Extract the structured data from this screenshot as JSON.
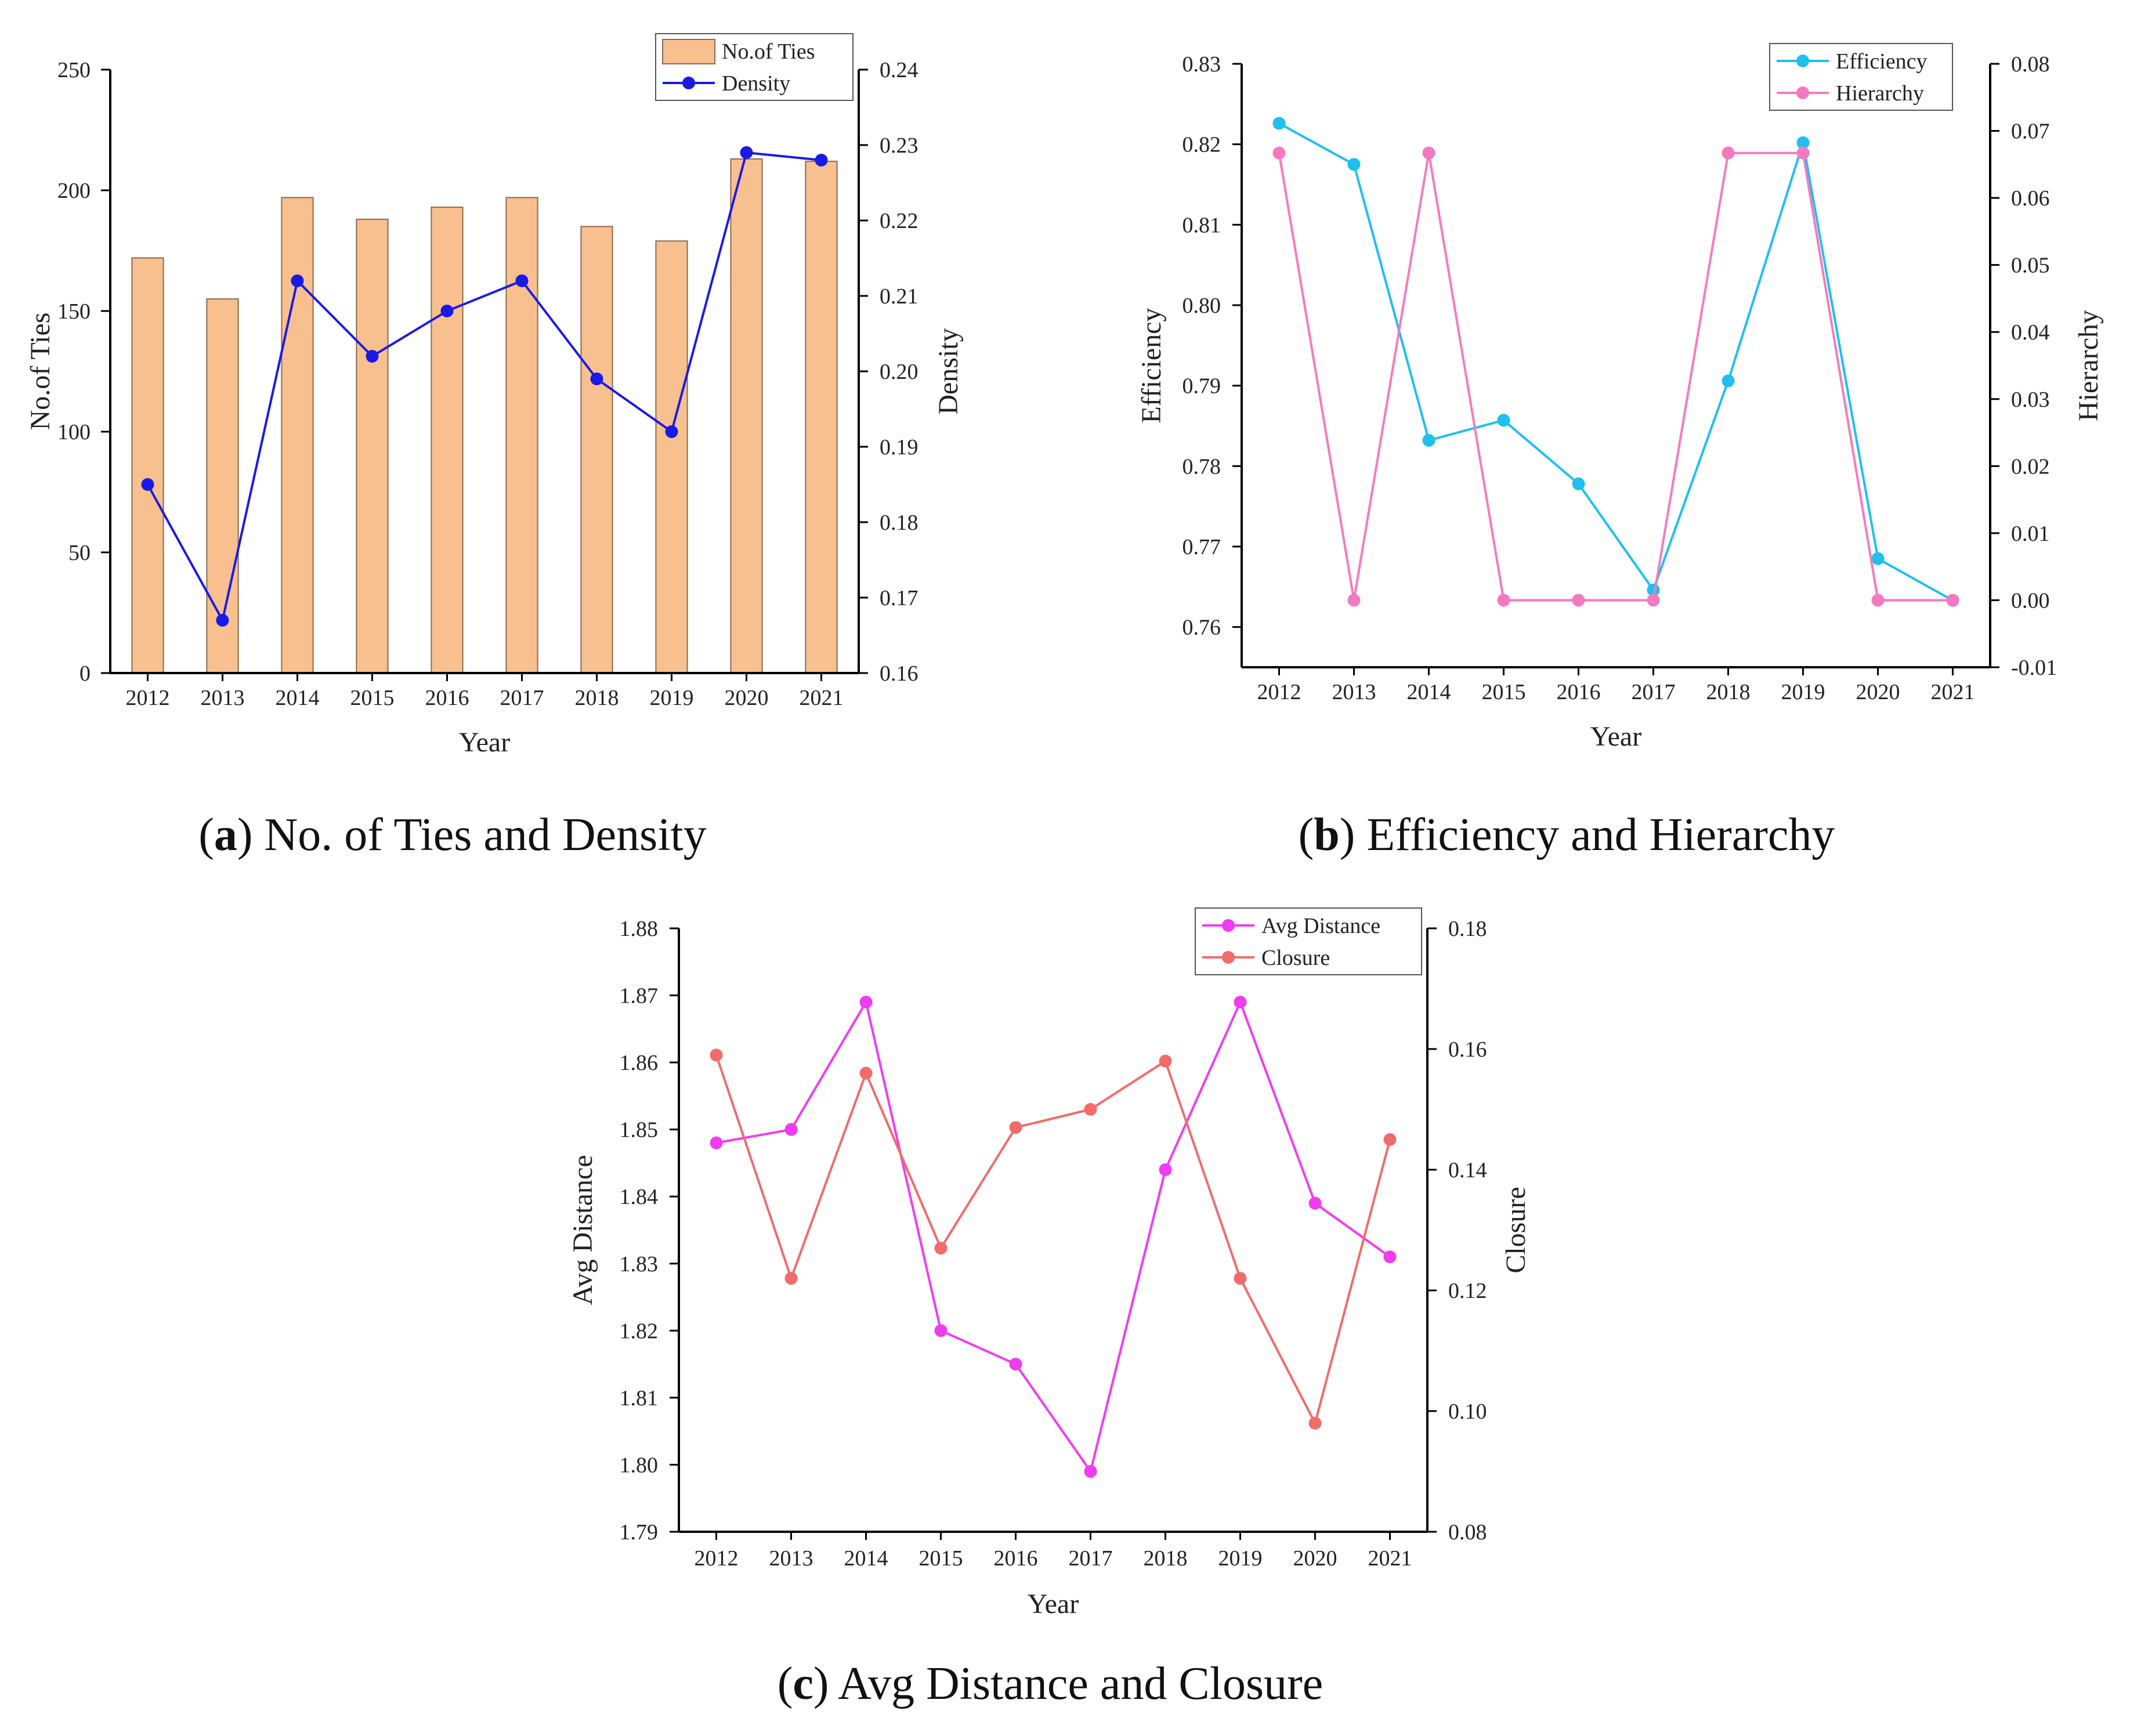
{
  "chart_data": [
    {
      "id": "a",
      "type": "bar+line",
      "caption_letter": "a",
      "caption_text": "No. of Ties and Density",
      "categories": [
        "2012",
        "2013",
        "2014",
        "2015",
        "2016",
        "2017",
        "2018",
        "2019",
        "2020",
        "2021"
      ],
      "xlabel": "Year",
      "left_axis": {
        "label": "No.of Ties",
        "min": 0,
        "max": 250,
        "ticks": [
          0,
          50,
          100,
          150,
          200,
          250
        ],
        "tick_labels": [
          "0",
          "50",
          "100",
          "150",
          "200",
          "250"
        ]
      },
      "right_axis": {
        "label": "Density",
        "min": 0.16,
        "max": 0.24,
        "ticks": [
          0.16,
          0.17,
          0.18,
          0.19,
          0.2,
          0.21,
          0.22,
          0.23,
          0.24
        ],
        "tick_labels": [
          "0.16",
          "0.17",
          "0.18",
          "0.19",
          "0.20",
          "0.21",
          "0.22",
          "0.23",
          "0.24"
        ]
      },
      "series": [
        {
          "name": "No.of Ties",
          "kind": "bar",
          "axis": "left",
          "color": "#f9c08f",
          "stroke": "#8a6a50",
          "values": [
            172,
            155,
            197,
            188,
            193,
            197,
            185,
            179,
            213,
            212
          ]
        },
        {
          "name": "Density",
          "kind": "line",
          "axis": "right",
          "color": "#1a1ae6",
          "values": [
            0.185,
            0.167,
            0.212,
            0.202,
            0.208,
            0.212,
            0.199,
            0.192,
            0.229,
            0.228
          ]
        }
      ],
      "legend_position": "top-right"
    },
    {
      "id": "b",
      "type": "line",
      "caption_letter": "b",
      "caption_text": "Efficiency and Hierarchy",
      "categories": [
        "2012",
        "2013",
        "2014",
        "2015",
        "2016",
        "2017",
        "2018",
        "2019",
        "2020",
        "2021"
      ],
      "xlabel": "Year",
      "left_axis": {
        "label": "Efficiency",
        "min": 0.755,
        "max": 0.83,
        "ticks": [
          0.76,
          0.77,
          0.78,
          0.79,
          0.8,
          0.81,
          0.82,
          0.83
        ],
        "tick_labels": [
          "0.76",
          "0.77",
          "0.78",
          "0.79",
          "0.80",
          "0.81",
          "0.82",
          "0.83"
        ]
      },
      "right_axis": {
        "label": "Hierarchy",
        "min": -0.01,
        "max": 0.08,
        "ticks": [
          -0.01,
          0.0,
          0.01,
          0.02,
          0.03,
          0.04,
          0.05,
          0.06,
          0.07,
          0.08
        ],
        "tick_labels": [
          "-0.01",
          "0.00",
          "0.01",
          "0.02",
          "0.03",
          "0.04",
          "0.05",
          "0.06",
          "0.07",
          "0.08"
        ]
      },
      "series": [
        {
          "name": "Efficiency",
          "kind": "line",
          "axis": "left",
          "color": "#1fbfef",
          "values": [
            0.8226,
            0.8175,
            0.7832,
            0.7857,
            0.7778,
            0.7646,
            0.7906,
            0.8202,
            0.7685,
            0.7633
          ]
        },
        {
          "name": "Hierarchy",
          "kind": "line",
          "axis": "right",
          "color": "#f47ac0",
          "values": [
            0.0667,
            0.0,
            0.0667,
            0.0,
            0.0,
            0.0,
            0.0667,
            0.0667,
            0.0,
            0.0
          ]
        }
      ],
      "legend_position": "top-right"
    },
    {
      "id": "c",
      "type": "line",
      "caption_letter": "c",
      "caption_text": "Avg Distance and Closure",
      "categories": [
        "2012",
        "2013",
        "2014",
        "2015",
        "2016",
        "2017",
        "2018",
        "2019",
        "2020",
        "2021"
      ],
      "xlabel": "Year",
      "left_axis": {
        "label": "Avg Distance",
        "min": 1.79,
        "max": 1.88,
        "ticks": [
          1.79,
          1.8,
          1.81,
          1.82,
          1.83,
          1.84,
          1.85,
          1.86,
          1.87,
          1.88
        ],
        "tick_labels": [
          "1.79",
          "1.80",
          "1.81",
          "1.82",
          "1.83",
          "1.84",
          "1.85",
          "1.86",
          "1.87",
          "1.88"
        ]
      },
      "right_axis": {
        "label": "Closure",
        "min": 0.08,
        "max": 0.18,
        "ticks": [
          0.08,
          0.1,
          0.12,
          0.14,
          0.16,
          0.18
        ],
        "tick_labels": [
          "0.08",
          "0.10",
          "0.12",
          "0.14",
          "0.16",
          "0.18"
        ]
      },
      "series": [
        {
          "name": "Avg Distance",
          "kind": "line",
          "axis": "left",
          "color": "#f03cf0",
          "values": [
            1.848,
            1.85,
            1.869,
            1.82,
            1.815,
            1.799,
            1.844,
            1.869,
            1.839,
            1.831
          ]
        },
        {
          "name": "Closure",
          "kind": "line",
          "axis": "right",
          "color": "#f26b6b",
          "values": [
            0.159,
            0.122,
            0.156,
            0.127,
            0.147,
            0.15,
            0.158,
            0.122,
            0.098,
            0.145
          ]
        }
      ],
      "legend_position": "top-right"
    }
  ]
}
